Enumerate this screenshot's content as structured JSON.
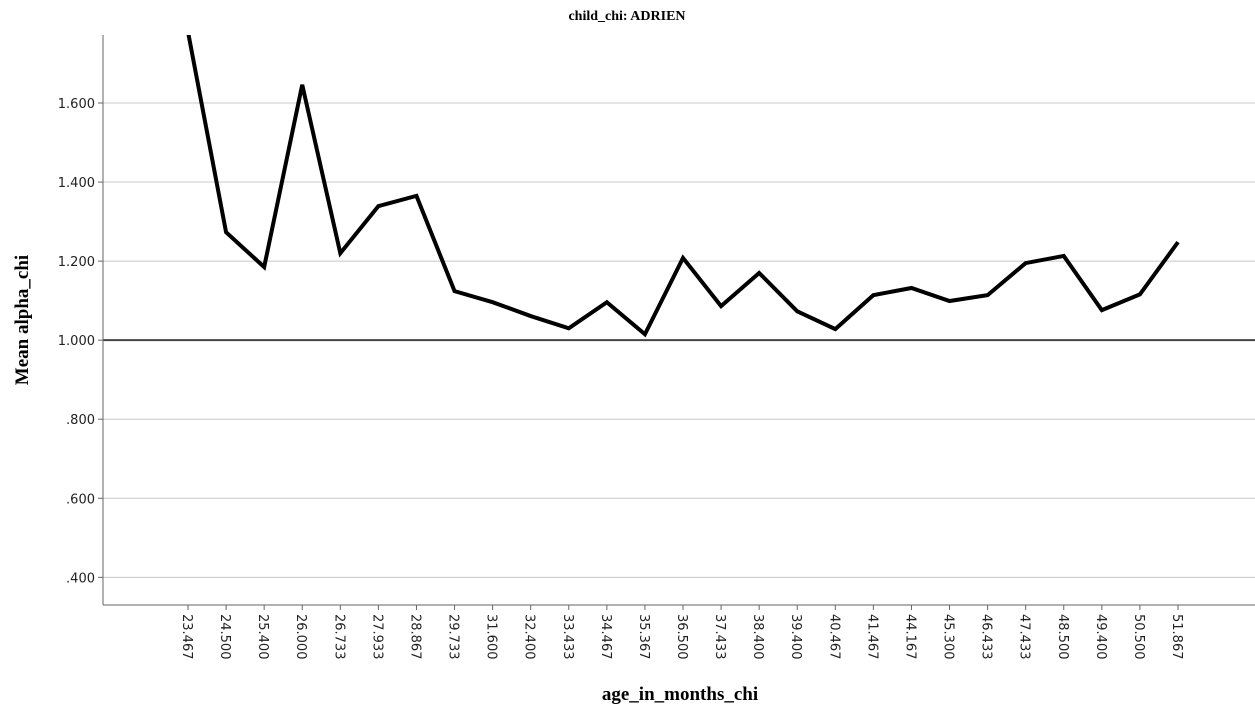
{
  "chart_data": {
    "type": "line",
    "title": "child_chi: ADRIEN",
    "x_label": "age_in_months_chi",
    "y_label": "Mean alpha_chi",
    "categories": [
      "23.467",
      "24.500",
      "25.400",
      "26.000",
      "26.733",
      "27.933",
      "28.867",
      "29.733",
      "31.600",
      "32.400",
      "33.433",
      "34.467",
      "35.367",
      "36.500",
      "37.433",
      "38.400",
      "39.400",
      "40.467",
      "41.467",
      "44.167",
      "45.300",
      "46.433",
      "47.433",
      "48.500",
      "49.400",
      "50.500",
      "51.867"
    ],
    "series": [
      {
        "name": "Mean alpha_chi",
        "color": "#000000",
        "values": [
          1.78,
          1.273,
          1.185,
          1.646,
          1.22,
          1.339,
          1.365,
          1.124,
          1.096,
          1.061,
          1.03,
          1.096,
          1.015,
          1.208,
          1.086,
          1.17,
          1.073,
          1.028,
          1.114,
          1.132,
          1.099,
          1.114,
          1.195,
          1.213,
          1.076,
          1.116,
          1.248
        ]
      }
    ],
    "ylim": [
      0.33,
      1.772
    ],
    "yticks": [
      {
        "value": 0.4,
        "label": ".400"
      },
      {
        "value": 0.6,
        "label": ".600"
      },
      {
        "value": 0.8,
        "label": ".800"
      },
      {
        "value": 1.0,
        "label": "1.000"
      },
      {
        "value": 1.2,
        "label": "1.200"
      },
      {
        "value": 1.4,
        "label": "1.400"
      },
      {
        "value": 1.6,
        "label": "1.600"
      }
    ],
    "reference_line": 1.0,
    "grid": true
  }
}
